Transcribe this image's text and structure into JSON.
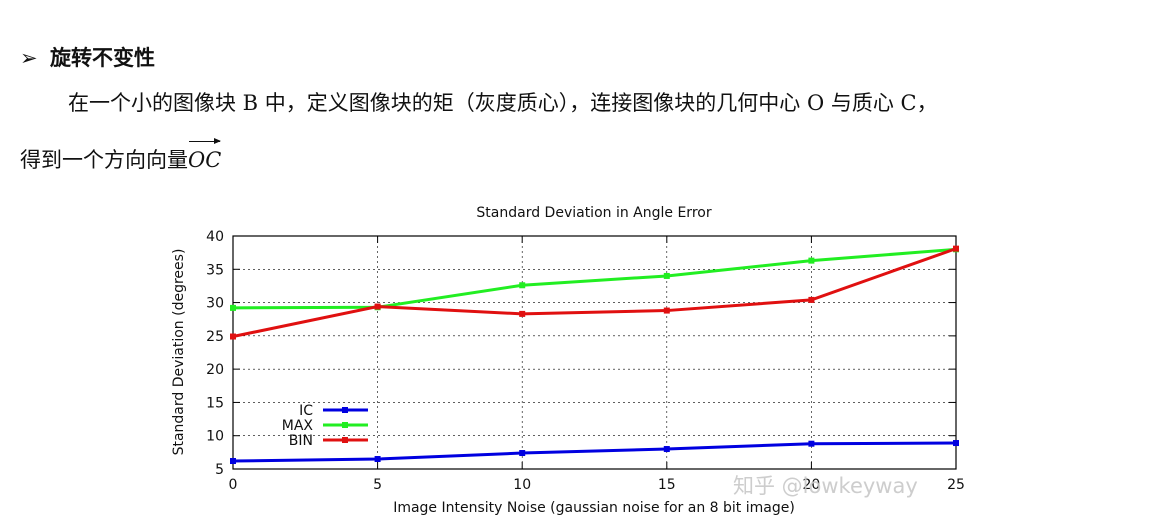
{
  "heading": {
    "bullet": "➢",
    "text": "旋转不变性"
  },
  "paragraph": {
    "line1": "在一个小的图像块 B 中，定义图像块的矩（灰度质心），连接图像块的几何中心 O 与质心 C，",
    "line2": "得到一个方向向量",
    "vector": "OC"
  },
  "watermark": "知乎 @lowkeyway",
  "colors": {
    "IC": "#0000e0",
    "MAX": "#22ee22",
    "BIN": "#e01010"
  },
  "chart_data": {
    "type": "line",
    "title": "Standard Deviation in Angle Error",
    "xlabel": "Image Intensity Noise (gaussian noise for an 8 bit image)",
    "ylabel": "Standard Deviation (degrees)",
    "x": [
      0,
      5,
      10,
      15,
      20,
      25
    ],
    "xlim": [
      0,
      25
    ],
    "ylim": [
      5,
      40
    ],
    "xticks": [
      0,
      5,
      10,
      15,
      20,
      25
    ],
    "yticks": [
      5,
      10,
      15,
      20,
      25,
      30,
      35,
      40
    ],
    "legend_position": "bottom-left",
    "series": [
      {
        "name": "IC",
        "values": [
          6.2,
          6.5,
          7.4,
          8.0,
          8.8,
          8.9
        ]
      },
      {
        "name": "MAX",
        "values": [
          29.2,
          29.3,
          32.6,
          34.0,
          36.3,
          38.0
        ]
      },
      {
        "name": "BIN",
        "values": [
          24.9,
          29.4,
          28.3,
          28.8,
          30.4,
          38.1
        ]
      }
    ]
  }
}
